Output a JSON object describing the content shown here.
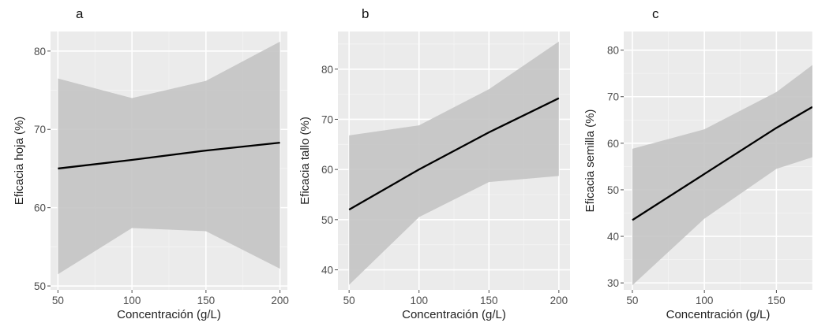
{
  "colors": {
    "panel_background": "#ebebeb",
    "grid_major": "#ffffff",
    "grid_minor": "#f4f4f4",
    "ribbon": "#c4c4c4",
    "line": "#000000",
    "tick": "#4d4d4d"
  },
  "chart_data": [
    {
      "type": "line",
      "panel_label": "a",
      "title": "",
      "xlabel": "Concentración (g/L)",
      "ylabel": "Eficacia hoja (%)",
      "x": [
        50,
        100,
        150,
        200
      ],
      "series": [
        {
          "values": [
            65.0,
            66.1,
            67.3,
            68.3
          ],
          "ci_lower": [
            51.5,
            57.4,
            57.0,
            52.2
          ],
          "ci_upper": [
            76.5,
            74.0,
            76.2,
            81.2
          ]
        }
      ],
      "x_ticks": [
        50,
        100,
        150,
        200
      ],
      "y_ticks": [
        50,
        60,
        70,
        80
      ],
      "xlim": [
        45,
        205
      ],
      "ylim": [
        49.5,
        82.5
      ],
      "grid": true
    },
    {
      "type": "line",
      "panel_label": "b",
      "title": "",
      "xlabel": "Concentración (g/L)",
      "ylabel": "Eficacia tallo (%)",
      "x": [
        50,
        100,
        150,
        200
      ],
      "series": [
        {
          "values": [
            52.0,
            60.0,
            67.4,
            74.2
          ],
          "ci_lower": [
            37.0,
            50.5,
            57.5,
            58.7
          ],
          "ci_upper": [
            66.8,
            68.8,
            76.0,
            85.5
          ]
        }
      ],
      "x_ticks": [
        50,
        100,
        150,
        200
      ],
      "y_ticks": [
        40,
        50,
        60,
        70,
        80
      ],
      "xlim": [
        42,
        208
      ],
      "ylim": [
        36,
        87.5
      ],
      "grid": true
    },
    {
      "type": "line",
      "panel_label": "c",
      "title": "",
      "xlabel": "Concentración (g/L)",
      "ylabel": "Eficacia semilla (%)",
      "x": [
        50,
        100,
        150,
        175
      ],
      "series": [
        {
          "values": [
            43.5,
            53.4,
            63.3,
            67.8
          ],
          "ci_lower": [
            29.5,
            43.8,
            54.5,
            57.0
          ],
          "ci_upper": [
            58.8,
            63.0,
            71.0,
            76.8
          ]
        }
      ],
      "x_ticks": [
        50,
        100,
        150
      ],
      "y_ticks": [
        30,
        40,
        50,
        60,
        70,
        80
      ],
      "xlim": [
        44,
        175
      ],
      "ylim": [
        28.5,
        84
      ],
      "grid": true
    }
  ]
}
